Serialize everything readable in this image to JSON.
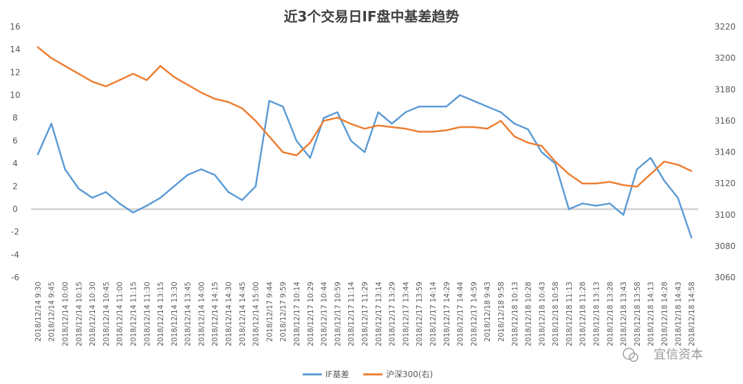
{
  "chart_data": {
    "type": "line",
    "title": "近3个交易日IF盘中基差趋势",
    "left_axis": {
      "min": -6,
      "max": 16,
      "step": 2,
      "ticks": [
        "-6",
        "-4",
        "-2",
        "0",
        "2",
        "4",
        "6",
        "8",
        "10",
        "12",
        "14",
        "16"
      ]
    },
    "right_axis": {
      "min": 3060,
      "max": 3220,
      "step": 20,
      "ticks": [
        "3060",
        "3080",
        "3100",
        "3120",
        "3140",
        "3160",
        "3180",
        "3200",
        "3220"
      ]
    },
    "categories": [
      "2018/12/14 9:30",
      "2018/12/14 9:45",
      "2018/12/14 10:00",
      "2018/12/14 10:15",
      "2018/12/14 10:30",
      "2018/12/14 10:45",
      "2018/12/14 11:00",
      "2018/12/14 11:15",
      "2018/12/14 11:30",
      "2018/12/14 13:15",
      "2018/12/14 13:30",
      "2018/12/14 13:45",
      "2018/12/14 14:00",
      "2018/12/14 14:15",
      "2018/12/14 14:30",
      "2018/12/14 14:45",
      "2018/12/14 15:00",
      "2018/12/17 9:44",
      "2018/12/17 9:59",
      "2018/12/17 10:14",
      "2018/12/17 10:29",
      "2018/12/17 10:44",
      "2018/12/17 10:59",
      "2018/12/17 11:14",
      "2018/12/17 11:29",
      "2018/12/17 13:14",
      "2018/12/17 13:29",
      "2018/12/17 13:44",
      "2018/12/17 13:59",
      "2018/12/17 14:14",
      "2018/12/17 14:29",
      "2018/12/17 14:44",
      "2018/12/17 14:59",
      "2018/12/18 9:43",
      "2018/12/18 9:58",
      "2018/12/18 10:13",
      "2018/12/18 10:28",
      "2018/12/18 10:43",
      "2018/12/18 10:58",
      "2018/12/18 11:13",
      "2018/12/18 11:28",
      "2018/12/18 13:13",
      "2018/12/18 13:28",
      "2018/12/18 13:43",
      "2018/12/18 13:58",
      "2018/12/18 14:13",
      "2018/12/18 14:28",
      "2018/12/18 14:43",
      "2018/12/18 14:58"
    ],
    "series": [
      {
        "name": "IF基差",
        "axis": "left",
        "color": "#5B9BD5",
        "values": [
          4.8,
          7.5,
          3.5,
          1.8,
          1.0,
          1.5,
          0.5,
          -0.3,
          0.3,
          1.0,
          2.0,
          3.0,
          3.5,
          3.0,
          1.5,
          0.8,
          2.0,
          9.5,
          9.0,
          6.0,
          4.5,
          8.0,
          8.5,
          6.0,
          5.0,
          8.5,
          7.5,
          8.5,
          9.0,
          9.0,
          9.0,
          10.0,
          9.5,
          9.0,
          8.5,
          7.5,
          7.0,
          5.0,
          4.0,
          0.0,
          0.5,
          0.3,
          0.5,
          -0.5,
          3.5,
          4.5,
          2.5,
          1.0,
          -2.5
        ]
      },
      {
        "name": "沪深300(右)",
        "axis": "right",
        "color": "#ED7D31",
        "values": [
          3207,
          3200,
          3195,
          3190,
          3185,
          3182,
          3186,
          3190,
          3186,
          3195,
          3188,
          3183,
          3178,
          3174,
          3172,
          3168,
          3160,
          3150,
          3140,
          3138,
          3146,
          3160,
          3162,
          3158,
          3155,
          3157,
          3156,
          3155,
          3153,
          3153,
          3154,
          3156,
          3156,
          3155,
          3160,
          3150,
          3146,
          3144,
          3134,
          3126,
          3120,
          3120,
          3121,
          3119,
          3118,
          3126,
          3134,
          3132,
          3128
        ]
      }
    ]
  },
  "watermark": "宜信资本"
}
